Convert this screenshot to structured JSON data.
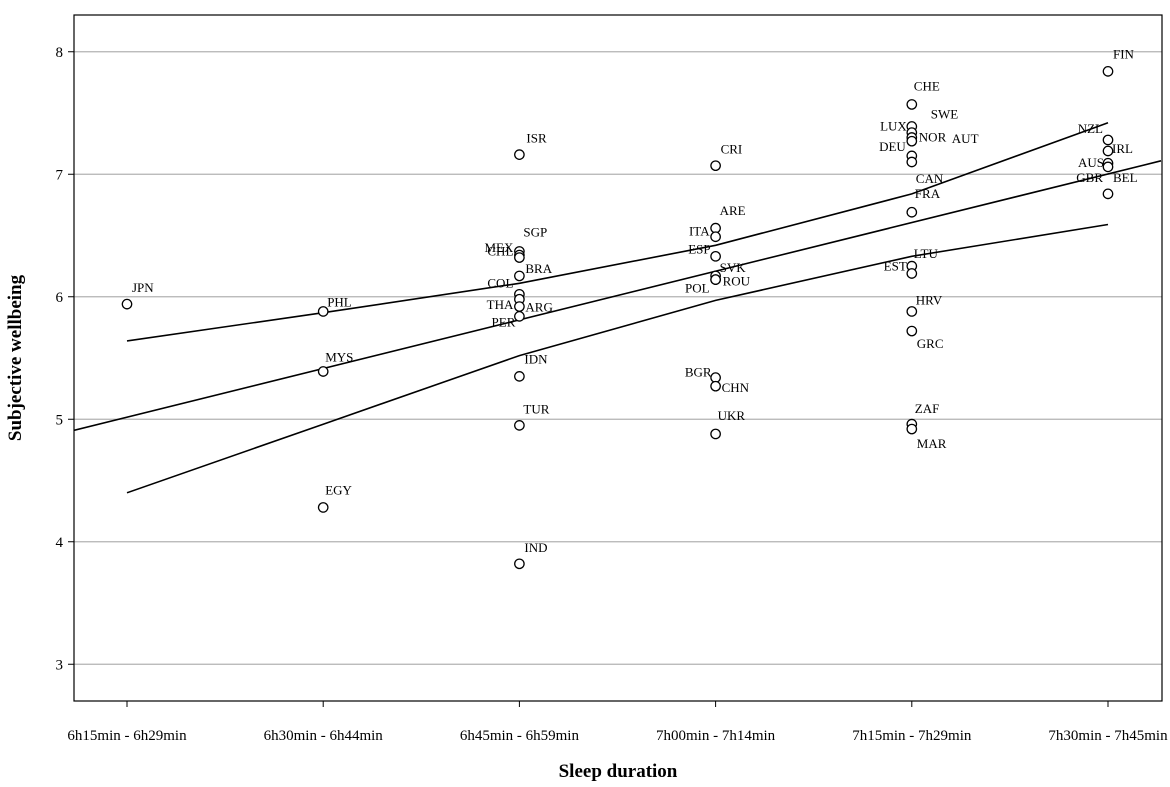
{
  "chart_data": {
    "type": "scatter",
    "title": "",
    "xlabel": "Sleep duration",
    "ylabel": "Subjective wellbeing",
    "categories": [
      "6h15min - 6h29min",
      "6h30min - 6h44min",
      "6h45min - 6h59min",
      "7h00min - 7h14min",
      "7h15min - 7h29min",
      "7h30min - 7h45min"
    ],
    "ylim": [
      2.7,
      8.3
    ],
    "yticks": [
      3,
      4,
      5,
      6,
      7,
      8
    ],
    "grid": "horizontal",
    "points": [
      {
        "label": "JPN",
        "category": 0,
        "y": 5.94
      },
      {
        "label": "PHL",
        "category": 1,
        "y": 5.88
      },
      {
        "label": "MYS",
        "category": 1,
        "y": 5.39
      },
      {
        "label": "EGY",
        "category": 1,
        "y": 4.28
      },
      {
        "label": "ISR",
        "category": 2,
        "y": 7.16
      },
      {
        "label": "SGP",
        "category": 2,
        "y": 6.37
      },
      {
        "label": "MEX",
        "category": 2,
        "y": 6.34
      },
      {
        "label": "CHL",
        "category": 2,
        "y": 6.32
      },
      {
        "label": "BRA",
        "category": 2,
        "y": 6.17
      },
      {
        "label": "COL",
        "category": 2,
        "y": 6.02
      },
      {
        "label": "THA",
        "category": 2,
        "y": 5.98
      },
      {
        "label": "ARG",
        "category": 2,
        "y": 5.92
      },
      {
        "label": "PER",
        "category": 2,
        "y": 5.84
      },
      {
        "label": "IDN",
        "category": 2,
        "y": 5.35
      },
      {
        "label": "TUR",
        "category": 2,
        "y": 4.95
      },
      {
        "label": "IND",
        "category": 2,
        "y": 3.82
      },
      {
        "label": "CRI",
        "category": 3,
        "y": 7.07
      },
      {
        "label": "ARE",
        "category": 3,
        "y": 6.56
      },
      {
        "label": "ITA",
        "category": 3,
        "y": 6.49
      },
      {
        "label": "ESP",
        "category": 3,
        "y": 6.33
      },
      {
        "label": "SVK",
        "category": 3,
        "y": 6.17
      },
      {
        "label": "POL",
        "category": 3,
        "y": 6.14
      },
      {
        "label": "ROU",
        "category": 3,
        "y": 6.14
      },
      {
        "label": "BGR",
        "category": 3,
        "y": 5.34
      },
      {
        "label": "CHN",
        "category": 3,
        "y": 5.27
      },
      {
        "label": "UKR",
        "category": 3,
        "y": 4.88
      },
      {
        "label": "CHE",
        "category": 4,
        "y": 7.57
      },
      {
        "label": "SWE",
        "category": 4,
        "y": 7.39
      },
      {
        "label": "LUX",
        "category": 4,
        "y": 7.34
      },
      {
        "label": "NOR",
        "category": 4,
        "y": 7.3
      },
      {
        "label": "DEU",
        "category": 4,
        "y": 7.27
      },
      {
        "label": "AUT",
        "category": 4,
        "y": 7.15
      },
      {
        "label": "CAN",
        "category": 4,
        "y": 7.1
      },
      {
        "label": "FRA",
        "category": 4,
        "y": 6.69
      },
      {
        "label": "LTU",
        "category": 4,
        "y": 6.25
      },
      {
        "label": "EST",
        "category": 4,
        "y": 6.19
      },
      {
        "label": "HRV",
        "category": 4,
        "y": 5.88
      },
      {
        "label": "GRC",
        "category": 4,
        "y": 5.72
      },
      {
        "label": "ZAF",
        "category": 4,
        "y": 4.96
      },
      {
        "label": "MAR",
        "category": 4,
        "y": 4.92
      },
      {
        "label": "FIN",
        "category": 5,
        "y": 7.84
      },
      {
        "label": "NZL",
        "category": 5,
        "y": 7.28
      },
      {
        "label": "IRL",
        "category": 5,
        "y": 7.19
      },
      {
        "label": "AUS",
        "category": 5,
        "y": 7.09
      },
      {
        "label": "GBR",
        "category": 5,
        "y": 7.06
      },
      {
        "label": "BEL",
        "category": 5,
        "y": 6.84
      }
    ],
    "fit_lines": [
      {
        "points": [
          [
            -0.27,
            4.91
          ],
          [
            5.27,
            7.11
          ]
        ]
      },
      {
        "points": [
          [
            0,
            5.64
          ],
          [
            1,
            5.87
          ],
          [
            2,
            6.11
          ],
          [
            3,
            6.42
          ],
          [
            4,
            6.84
          ],
          [
            5,
            7.42
          ]
        ]
      },
      {
        "points": [
          [
            0,
            4.4
          ],
          [
            1,
            4.96
          ],
          [
            2,
            5.52
          ],
          [
            3,
            5.97
          ],
          [
            4,
            6.33
          ],
          [
            5,
            6.59
          ]
        ]
      }
    ]
  }
}
